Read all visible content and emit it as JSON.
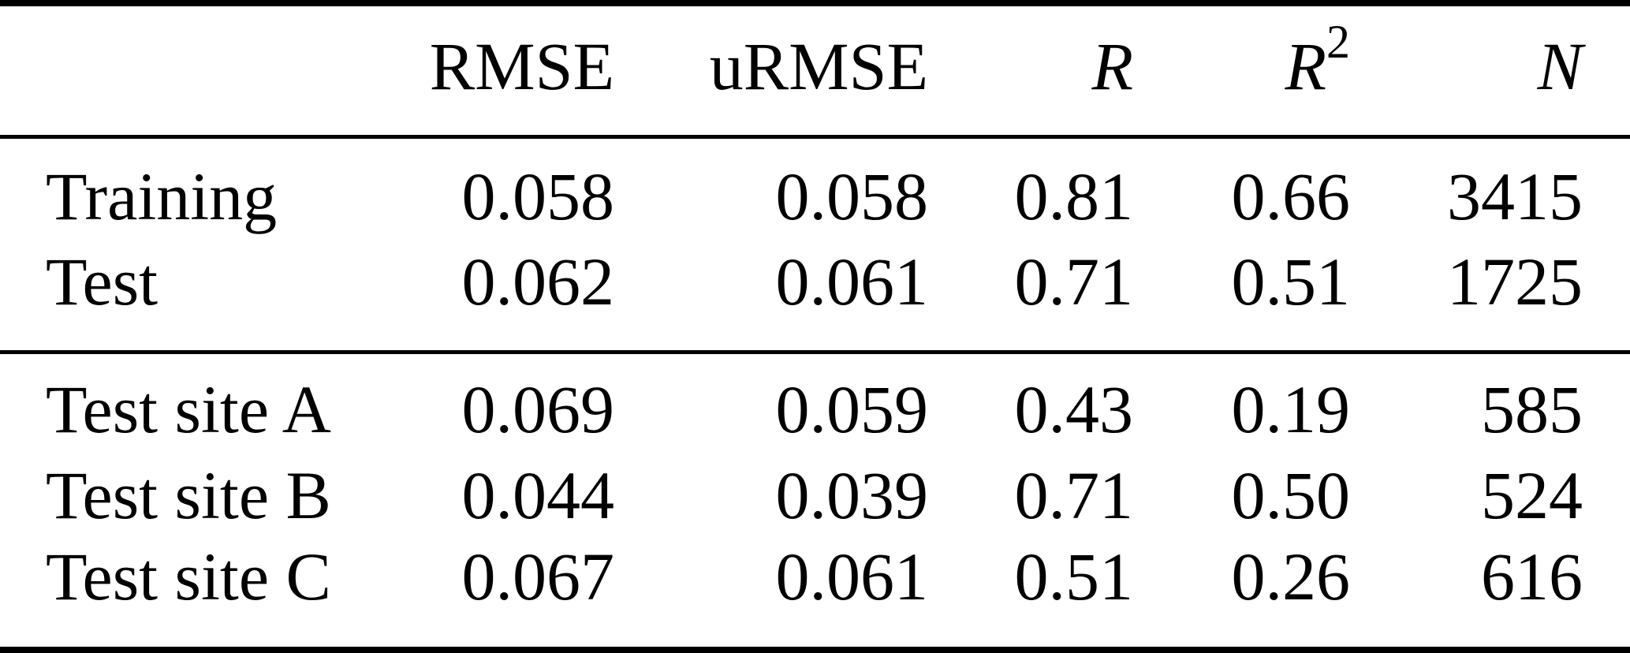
{
  "colors": {
    "background": "#ffffff",
    "text": "#000000",
    "rule": "#000000"
  },
  "table": {
    "header": {
      "rmse": "RMSE",
      "urmse": "uRMSE",
      "r": "R",
      "r2_base": "R",
      "r2_sup": "2",
      "n": "N"
    },
    "rows": [
      {
        "label": "Training",
        "rmse": "0.058",
        "urmse": "0.058",
        "r": "0.81",
        "r2": "0.66",
        "n": "3415"
      },
      {
        "label": "Test",
        "rmse": "0.062",
        "urmse": "0.061",
        "r": "0.71",
        "r2": "0.51",
        "n": "1725"
      },
      {
        "label": "Test site A",
        "rmse": "0.069",
        "urmse": "0.059",
        "r": "0.43",
        "r2": "0.19",
        "n": "585"
      },
      {
        "label": "Test site B",
        "rmse": "0.044",
        "urmse": "0.039",
        "r": "0.71",
        "r2": "0.50",
        "n": "524"
      },
      {
        "label": "Test site C",
        "rmse": "0.067",
        "urmse": "0.061",
        "r": "0.51",
        "r2": "0.26",
        "n": "616"
      }
    ]
  },
  "chart_data": {
    "type": "table",
    "columns": [
      "",
      "RMSE",
      "uRMSE",
      "R",
      "R^2",
      "N"
    ],
    "rows": [
      [
        "Training",
        0.058,
        0.058,
        0.81,
        0.66,
        3415
      ],
      [
        "Test",
        0.062,
        0.061,
        0.71,
        0.51,
        1725
      ],
      [
        "Test site A",
        0.069,
        0.059,
        0.43,
        0.19,
        585
      ],
      [
        "Test site B",
        0.044,
        0.039,
        0.71,
        0.5,
        524
      ],
      [
        "Test site C",
        0.067,
        0.061,
        0.51,
        0.26,
        616
      ]
    ],
    "sections": [
      {
        "row_labels": [
          "Training",
          "Test"
        ]
      },
      {
        "row_labels": [
          "Test site A",
          "Test site B",
          "Test site C"
        ]
      }
    ],
    "notes": "Booktabs-style statistics table: thick top/bottom rules, thin rules below header and between sections; numeric columns right-aligned; R, R2, N headers italic."
  }
}
